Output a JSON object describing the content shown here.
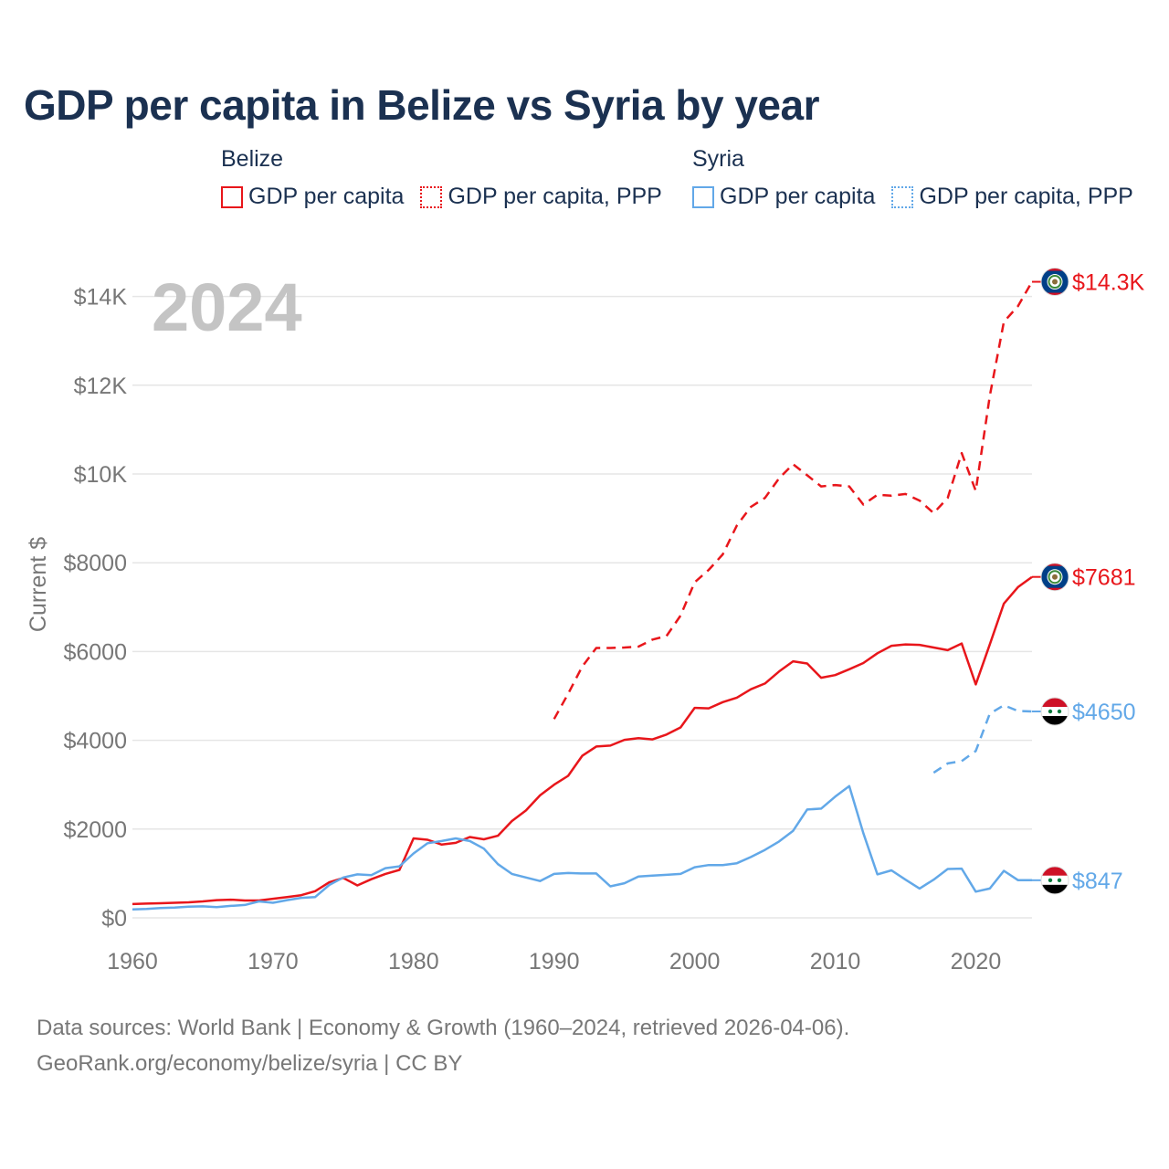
{
  "title": "GDP per capita in Belize vs Syria by year",
  "year_watermark": "2024",
  "legend": [
    {
      "group": "Belize",
      "items": [
        {
          "label": "GDP per capita",
          "color": "#e8161b",
          "style": "solid"
        },
        {
          "label": "GDP per capita, PPP",
          "color": "#e8161b",
          "style": "dotted"
        }
      ]
    },
    {
      "group": "Syria",
      "items": [
        {
          "label": "GDP per capita",
          "color": "#62a8e8",
          "style": "solid"
        },
        {
          "label": "GDP per capita, PPP",
          "color": "#62a8e8",
          "style": "dotted"
        }
      ]
    }
  ],
  "source": {
    "line1": "Data sources: World Bank | Economy & Growth (1960–2024, retrieved 2026-04-06).",
    "line2": "GeoRank.org/economy/belize/syria | CC BY"
  },
  "chart_data": {
    "type": "line",
    "title": "GDP per capita in Belize vs Syria by year",
    "xlabel": "",
    "ylabel": "Current $",
    "xlim": [
      1960,
      2024
    ],
    "ylim": [
      0,
      14300
    ],
    "x_ticks": [
      1960,
      1970,
      1980,
      1990,
      2000,
      2010,
      2020
    ],
    "y_ticks": [
      {
        "value": 0,
        "label": "$0"
      },
      {
        "value": 2000,
        "label": "$2000"
      },
      {
        "value": 4000,
        "label": "$4000"
      },
      {
        "value": 6000,
        "label": "$6000"
      },
      {
        "value": 8000,
        "label": "$8000"
      },
      {
        "value": 10000,
        "label": "$10K"
      },
      {
        "value": 12000,
        "label": "$12K"
      },
      {
        "value": 14000,
        "label": "$14K"
      }
    ],
    "grid": true,
    "series": [
      {
        "name": "Belize GDP per capita",
        "color": "#e8161b",
        "dash": false,
        "end_label": "$7681",
        "flag": "belize",
        "x": [
          1960,
          1961,
          1962,
          1963,
          1964,
          1965,
          1966,
          1967,
          1968,
          1969,
          1970,
          1971,
          1972,
          1973,
          1974,
          1975,
          1976,
          1977,
          1978,
          1979,
          1980,
          1981,
          1982,
          1983,
          1984,
          1985,
          1986,
          1987,
          1988,
          1989,
          1990,
          1991,
          1992,
          1993,
          1994,
          1995,
          1996,
          1997,
          1998,
          1999,
          2000,
          2001,
          2002,
          2003,
          2004,
          2005,
          2006,
          2007,
          2008,
          2009,
          2010,
          2011,
          2012,
          2013,
          2014,
          2015,
          2016,
          2017,
          2018,
          2019,
          2020,
          2021,
          2022,
          2023,
          2024
        ],
        "y": [
          310,
          320,
          330,
          340,
          350,
          370,
          400,
          410,
          390,
          390,
          430,
          470,
          510,
          600,
          800,
          900,
          730,
          870,
          990,
          1080,
          1790,
          1760,
          1650,
          1690,
          1820,
          1770,
          1850,
          2180,
          2420,
          2760,
          3000,
          3200,
          3650,
          3860,
          3880,
          4010,
          4050,
          4020,
          4130,
          4290,
          4730,
          4720,
          4860,
          4960,
          5150,
          5280,
          5550,
          5780,
          5730,
          5410,
          5470,
          5600,
          5740,
          5960,
          6130,
          6160,
          6150,
          6090,
          6030,
          6180,
          5260,
          6160,
          7080,
          7450,
          7681
        ]
      },
      {
        "name": "Belize GDP per capita, PPP",
        "color": "#e8161b",
        "dash": true,
        "end_label": "$14.3K",
        "flag": "belize",
        "x": [
          1990,
          1991,
          1992,
          1993,
          1994,
          1995,
          1996,
          1997,
          1998,
          1999,
          2000,
          2001,
          2002,
          2003,
          2004,
          2005,
          2006,
          2007,
          2008,
          2009,
          2010,
          2011,
          2012,
          2013,
          2014,
          2015,
          2016,
          2017,
          2018,
          2019,
          2020,
          2021,
          2022,
          2023,
          2024
        ],
        "y": [
          4480,
          5050,
          5660,
          6080,
          6080,
          6090,
          6110,
          6270,
          6350,
          6810,
          7560,
          7840,
          8190,
          8840,
          9260,
          9460,
          9900,
          10220,
          9970,
          9720,
          9750,
          9720,
          9310,
          9530,
          9510,
          9550,
          9400,
          9120,
          9460,
          10470,
          9620,
          11760,
          13430,
          13780,
          14330
        ]
      },
      {
        "name": "Syria GDP per capita",
        "color": "#62a8e8",
        "dash": false,
        "end_label": "$847",
        "flag": "syria",
        "x": [
          1960,
          1961,
          1962,
          1963,
          1964,
          1965,
          1966,
          1967,
          1968,
          1969,
          1970,
          1971,
          1972,
          1973,
          1974,
          1975,
          1976,
          1977,
          1978,
          1979,
          1980,
          1981,
          1982,
          1983,
          1984,
          1985,
          1986,
          1987,
          1988,
          1989,
          1990,
          1991,
          1992,
          1993,
          1994,
          1995,
          1996,
          1997,
          1998,
          1999,
          2000,
          2001,
          2002,
          2003,
          2004,
          2005,
          2006,
          2007,
          2008,
          2009,
          2010,
          2011,
          2012,
          2013,
          2014,
          2015,
          2016,
          2017,
          2018,
          2019,
          2020,
          2021,
          2022,
          2023,
          2024
        ],
        "y": [
          190,
          200,
          220,
          230,
          250,
          260,
          240,
          270,
          290,
          370,
          340,
          400,
          450,
          470,
          740,
          910,
          980,
          960,
          1120,
          1160,
          1450,
          1680,
          1730,
          1790,
          1730,
          1560,
          1210,
          990,
          910,
          830,
          990,
          1010,
          1000,
          1000,
          710,
          780,
          930,
          950,
          970,
          990,
          1140,
          1190,
          1190,
          1230,
          1370,
          1530,
          1720,
          1960,
          2440,
          2460,
          2730,
          2970,
          1910,
          980,
          1070,
          860,
          660,
          860,
          1100,
          1110,
          590,
          660,
          1060,
          850,
          847
        ]
      },
      {
        "name": "Syria GDP per capita, PPP",
        "color": "#62a8e8",
        "dash": true,
        "end_label": "$4650",
        "flag": "syria",
        "x": [
          2017,
          2018,
          2019,
          2020,
          2021,
          2022,
          2023,
          2024
        ],
        "y": [
          3270,
          3480,
          3530,
          3760,
          4600,
          4790,
          4660,
          4650
        ]
      }
    ]
  }
}
